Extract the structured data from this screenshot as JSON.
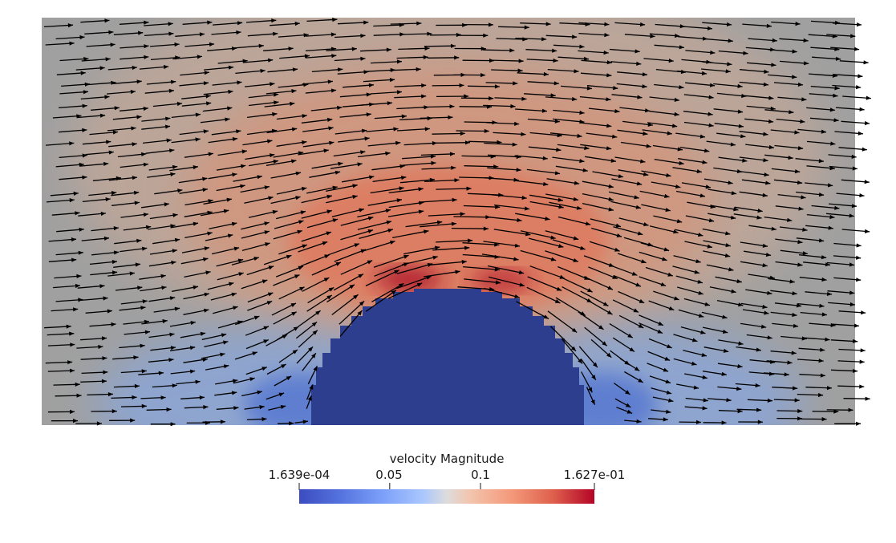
{
  "colorbar": {
    "title": "velocity Magnitude",
    "min_label": "1.639e-04",
    "max_label": "1.627e-01",
    "tick_labels": [
      "0.05",
      "0.1"
    ],
    "tick_values": [
      0.05,
      0.1
    ],
    "range": [
      0.0001639,
      0.1627
    ],
    "colormap": "Cool to Warm",
    "color_stops": [
      "#3b4cc0",
      "#6788ee",
      "#9abbff",
      "#c9d7f0",
      "#edd1c2",
      "#f7a889",
      "#e26952",
      "#b40426"
    ]
  },
  "field": {
    "background_color": "#a0a0a0",
    "obstacle_color": "#2e3e8f",
    "arrow_color": "#000000"
  }
}
